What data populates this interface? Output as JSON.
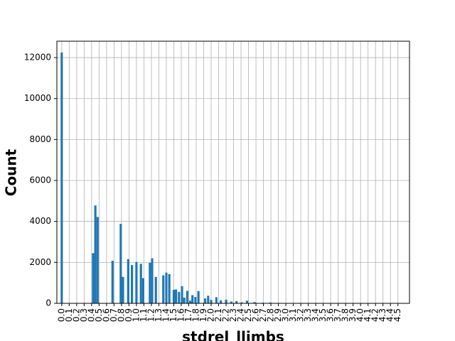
{
  "chart_data": {
    "type": "bar",
    "title": "",
    "xlabel": "stdrel_llimbs",
    "ylabel": "Count",
    "xlim": [
      -0.065,
      4.655
    ],
    "ylim": [
      0,
      12800
    ],
    "grid": true,
    "color": "#1f77b4",
    "grid_color": "#b0b0b0",
    "x_ticks": [
      0.0,
      0.1,
      0.2,
      0.3,
      0.4,
      0.5,
      0.6,
      0.7,
      0.8,
      0.9,
      1.0,
      1.1,
      1.2,
      1.3,
      1.4,
      1.5,
      1.6,
      1.7,
      1.8,
      1.9,
      2.0,
      2.1,
      2.2,
      2.3,
      2.4,
      2.5,
      2.6,
      2.7,
      2.8,
      2.9,
      3.0,
      3.1,
      3.2,
      3.3,
      3.4,
      3.5,
      3.6,
      3.7,
      3.8,
      3.9,
      4.0,
      4.1,
      4.2,
      4.3,
      4.4,
      4.5
    ],
    "x_tick_labels": [
      "0.0",
      "0.1",
      "0.2",
      "0.3",
      "0.4",
      "0.5",
      "0.6",
      "0.7",
      "0.8",
      "0.9",
      "1.0",
      "1.1",
      "1.2",
      "1.3",
      "1.4",
      "1.5",
      "1.6",
      "1.7",
      "1.8",
      "1.9",
      "2.0",
      "2.1",
      "2.2",
      "2.3",
      "2.4",
      "2.5",
      "2.6",
      "2.7",
      "2.8",
      "2.9",
      "3.0",
      "3.1",
      "3.2",
      "3.3",
      "3.4",
      "3.5",
      "3.6",
      "3.7",
      "3.8",
      "3.9",
      "4.0",
      "4.1",
      "4.2",
      "4.3",
      "4.4",
      "4.5"
    ],
    "y_ticks": [
      0,
      2000,
      4000,
      6000,
      8000,
      10000,
      12000
    ],
    "y_tick_labels": [
      "0",
      "2000",
      "4000",
      "6000",
      "8000",
      "10000",
      "12000"
    ],
    "bar_width": 0.03,
    "x": [
      0.0,
      0.42,
      0.45,
      0.48,
      0.68,
      0.79,
      0.82,
      0.89,
      0.94,
      1.0,
      1.06,
      1.09,
      1.18,
      1.21,
      1.26,
      1.36,
      1.4,
      1.44,
      1.5,
      1.53,
      1.57,
      1.61,
      1.64,
      1.68,
      1.72,
      1.75,
      1.79,
      1.83,
      1.92,
      1.96,
      2.0,
      2.07,
      2.13,
      2.2,
      2.27,
      2.34,
      2.41,
      2.48,
      2.58,
      2.69,
      2.79,
      2.9,
      3.0,
      3.2
    ],
    "values": [
      12250,
      2450,
      4780,
      4220,
      2080,
      3880,
      1290,
      2160,
      1870,
      2020,
      1930,
      1230,
      1980,
      2200,
      1290,
      1370,
      1500,
      1430,
      660,
      680,
      560,
      840,
      280,
      610,
      130,
      400,
      310,
      600,
      240,
      370,
      170,
      300,
      150,
      180,
      90,
      110,
      50,
      130,
      60,
      30,
      40,
      20,
      15,
      10
    ]
  }
}
